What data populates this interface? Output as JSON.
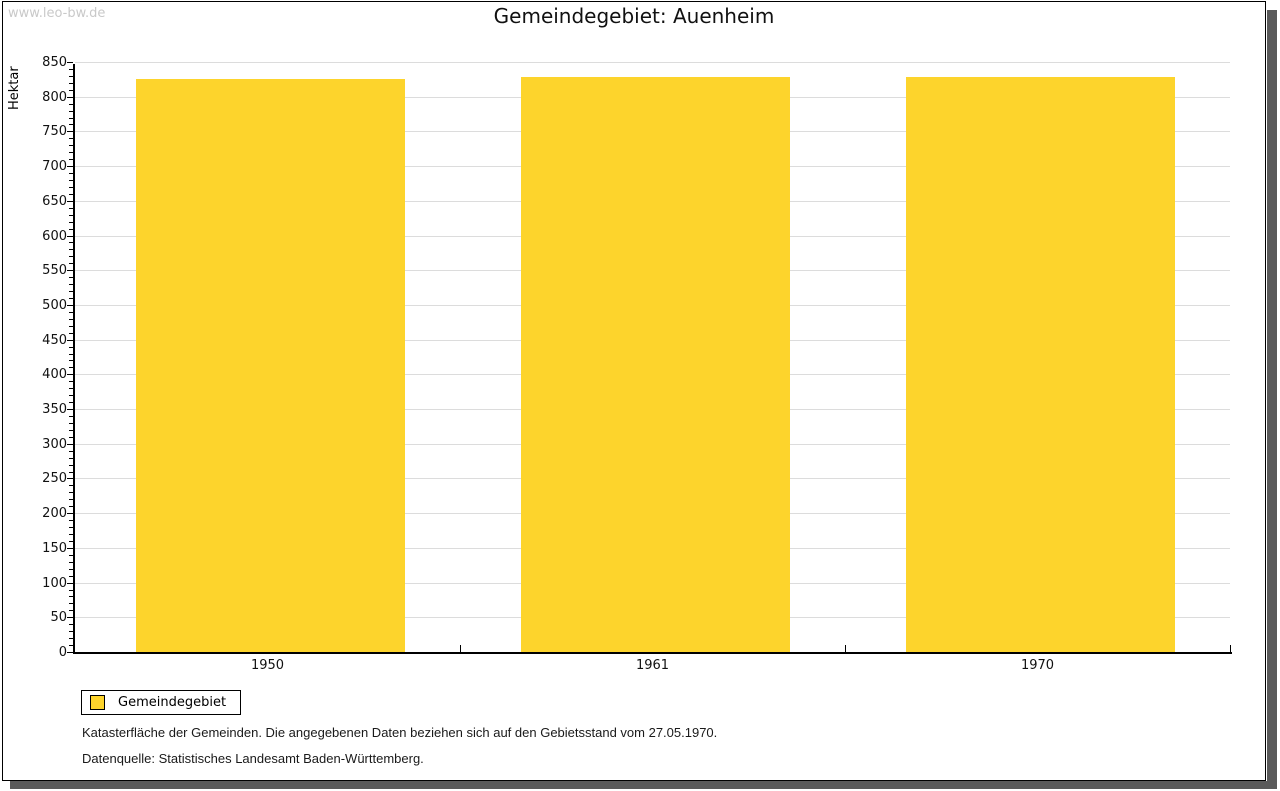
{
  "watermark": "www.leo-bw.de",
  "header": {
    "title": "Gemeindegebiet: Auenheim"
  },
  "chart_data": {
    "type": "bar",
    "categories": [
      "1950",
      "1961",
      "1970"
    ],
    "values": [
      826,
      829,
      828
    ],
    "series": [
      {
        "name": "Gemeindegebiet",
        "values": [
          826,
          829,
          828
        ]
      }
    ],
    "title": "Gemeindegebiet: Auenheim",
    "xlabel": "",
    "ylabel": "Hektar",
    "ylim": [
      0,
      850
    ],
    "ytick_step": 50,
    "yminor_step": 10,
    "grid": true,
    "legend_position": "bottom-left",
    "bar_color": "#FDD42C"
  },
  "legend": {
    "items": [
      {
        "label": "Gemeindegebiet",
        "color": "#FDD42C"
      }
    ]
  },
  "footnotes": {
    "line1": "Katasterfläche der Gemeinden. Die angegebenen Daten beziehen sich auf den Gebietsstand vom 27.05.1970.",
    "line2": "Datenquelle: Statistisches Landesamt Baden-Württemberg."
  }
}
